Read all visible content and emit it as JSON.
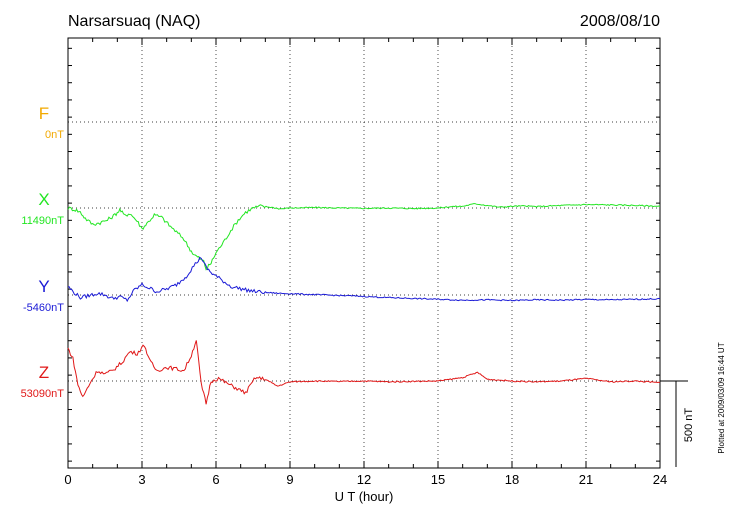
{
  "header": {
    "station": "Narsarsuaq (NAQ)",
    "date": "2008/08/10"
  },
  "chart_data": {
    "type": "line",
    "xlabel": "U T (hour)",
    "xlim": [
      0,
      24
    ],
    "x_ticks": [
      "0",
      "3",
      "6",
      "9",
      "12",
      "15",
      "18",
      "21",
      "24"
    ],
    "scale_bar_label": "500 nT",
    "scale_bar_nT": 500,
    "y_range_nT": [
      -1000,
      1000
    ],
    "plotted_note": "Plotted at 2009/03/09 16:44 UT",
    "grid": true,
    "series": [
      {
        "name": "F",
        "baseline": "0nT",
        "color": "#f2a900",
        "points": []
      },
      {
        "name": "X",
        "baseline": "11490nT",
        "color": "#22e622",
        "points": [
          [
            0,
            0
          ],
          [
            0.3,
            -10
          ],
          [
            0.5,
            -25
          ],
          [
            0.7,
            -60
          ],
          [
            1.0,
            -95
          ],
          [
            1.3,
            -85
          ],
          [
            1.6,
            -70
          ],
          [
            1.9,
            -40
          ],
          [
            2.1,
            -10
          ],
          [
            2.3,
            -45
          ],
          [
            2.5,
            -30
          ],
          [
            2.8,
            -75
          ],
          [
            3.0,
            -120
          ],
          [
            3.2,
            -90
          ],
          [
            3.5,
            -40
          ],
          [
            3.8,
            -55
          ],
          [
            4.1,
            -100
          ],
          [
            4.4,
            -140
          ],
          [
            4.7,
            -180
          ],
          [
            4.9,
            -230
          ],
          [
            5.1,
            -270
          ],
          [
            5.3,
            -290
          ],
          [
            5.5,
            -310
          ],
          [
            5.6,
            -355
          ],
          [
            5.8,
            -320
          ],
          [
            6.0,
            -260
          ],
          [
            6.3,
            -200
          ],
          [
            6.6,
            -130
          ],
          [
            6.9,
            -70
          ],
          [
            7.2,
            -25
          ],
          [
            7.5,
            0
          ],
          [
            7.8,
            10
          ],
          [
            8.2,
            5
          ],
          [
            8.6,
            -5
          ],
          [
            9.0,
            0
          ],
          [
            10,
            3
          ],
          [
            11,
            0
          ],
          [
            12,
            -2
          ],
          [
            13,
            0
          ],
          [
            14,
            -3
          ],
          [
            15,
            0
          ],
          [
            15.5,
            8
          ],
          [
            16,
            10
          ],
          [
            16.5,
            25
          ],
          [
            17,
            15
          ],
          [
            17.5,
            5
          ],
          [
            18,
            10
          ],
          [
            18.5,
            12
          ],
          [
            19,
            8
          ],
          [
            20,
            15
          ],
          [
            21,
            20
          ],
          [
            22,
            18
          ],
          [
            23,
            15
          ],
          [
            24,
            10
          ]
        ]
      },
      {
        "name": "Y",
        "baseline": "-5460nT",
        "color": "#1a1ad6",
        "points": [
          [
            0,
            50
          ],
          [
            0.2,
            20
          ],
          [
            0.5,
            -15
          ],
          [
            0.8,
            -5
          ],
          [
            1.2,
            10
          ],
          [
            1.5,
            0
          ],
          [
            1.8,
            -20
          ],
          [
            2.1,
            -10
          ],
          [
            2.4,
            -30
          ],
          [
            2.7,
            30
          ],
          [
            3.0,
            60
          ],
          [
            3.3,
            40
          ],
          [
            3.6,
            20
          ],
          [
            4.0,
            35
          ],
          [
            4.4,
            60
          ],
          [
            4.8,
            110
          ],
          [
            5.1,
            170
          ],
          [
            5.4,
            220
          ],
          [
            5.6,
            160
          ],
          [
            5.8,
            130
          ],
          [
            6.0,
            110
          ],
          [
            6.3,
            80
          ],
          [
            6.6,
            50
          ],
          [
            6.9,
            40
          ],
          [
            7.2,
            30
          ],
          [
            7.6,
            20
          ],
          [
            8.0,
            15
          ],
          [
            8.5,
            10
          ],
          [
            9.0,
            8
          ],
          [
            9.5,
            5
          ],
          [
            10,
            2
          ],
          [
            10.5,
            0
          ],
          [
            11,
            -3
          ],
          [
            11.5,
            -5
          ],
          [
            12,
            -8
          ],
          [
            12.5,
            -12
          ],
          [
            13,
            -15
          ],
          [
            14,
            -20
          ],
          [
            15,
            -25
          ],
          [
            16,
            -30
          ],
          [
            17,
            -28
          ],
          [
            18,
            -32
          ],
          [
            19,
            -28
          ],
          [
            20,
            -30
          ],
          [
            21,
            -26
          ],
          [
            22,
            -28
          ],
          [
            23,
            -25
          ],
          [
            24,
            -22
          ]
        ]
      },
      {
        "name": "Z",
        "baseline": "53090nT",
        "color": "#e01818",
        "points": [
          [
            0,
            190
          ],
          [
            0.2,
            130
          ],
          [
            0.4,
            -20
          ],
          [
            0.6,
            -95
          ],
          [
            0.9,
            -10
          ],
          [
            1.2,
            60
          ],
          [
            1.5,
            40
          ],
          [
            1.8,
            60
          ],
          [
            2.2,
            110
          ],
          [
            2.5,
            170
          ],
          [
            2.8,
            160
          ],
          [
            3.1,
            210
          ],
          [
            3.3,
            120
          ],
          [
            3.6,
            60
          ],
          [
            4.0,
            80
          ],
          [
            4.4,
            70
          ],
          [
            4.7,
            60
          ],
          [
            5.0,
            150
          ],
          [
            5.2,
            240
          ],
          [
            5.4,
            -20
          ],
          [
            5.6,
            -130
          ],
          [
            5.8,
            0
          ],
          [
            6.1,
            15
          ],
          [
            6.4,
            -10
          ],
          [
            6.8,
            -40
          ],
          [
            7.2,
            -70
          ],
          [
            7.6,
            20
          ],
          [
            8.0,
            10
          ],
          [
            8.5,
            -30
          ],
          [
            9.0,
            -5
          ],
          [
            10,
            0
          ],
          [
            11,
            -3
          ],
          [
            12,
            0
          ],
          [
            13,
            -5
          ],
          [
            14,
            -2
          ],
          [
            15,
            0
          ],
          [
            16,
            20
          ],
          [
            16.6,
            50
          ],
          [
            17,
            10
          ],
          [
            18,
            0
          ],
          [
            19,
            -5
          ],
          [
            20,
            0
          ],
          [
            21,
            15
          ],
          [
            22,
            -5
          ],
          [
            23,
            0
          ],
          [
            24,
            -10
          ]
        ]
      }
    ]
  }
}
